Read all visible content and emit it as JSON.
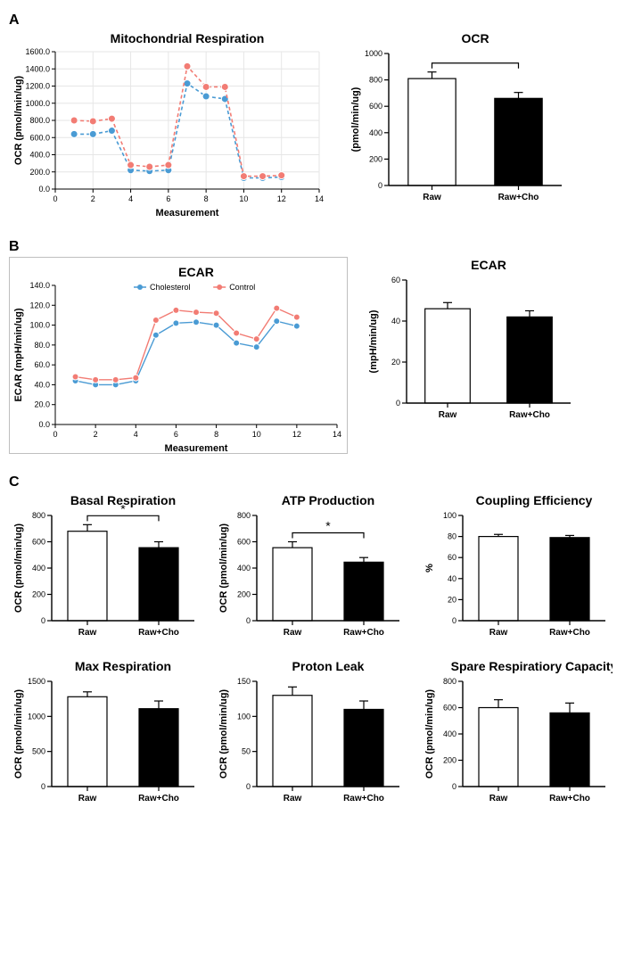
{
  "colors": {
    "blue": "#4a9bd4",
    "red": "#f27c74",
    "axis": "#000000",
    "grid": "#e6e6e6",
    "bg": "#ffffff",
    "black": "#000000",
    "white": "#ffffff",
    "gray_border": "#bfbfbf"
  },
  "fonts": {
    "title": 14,
    "axis_label": 11,
    "tick": 9,
    "legend": 9,
    "panel_label": 16
  },
  "panelA": {
    "line": {
      "title": "Mitochondrial Respiration",
      "xlabel": "Measurement",
      "ylabel": "OCR (pmol/min/ug)",
      "xlim": [
        0,
        14
      ],
      "ylim": [
        0,
        1600
      ],
      "ytick_step": 200,
      "xtick_step": 2,
      "grid_on": true,
      "bordered": false,
      "marker_radius": 4,
      "line_width": 1.6,
      "line_dash": "4 3",
      "series": [
        {
          "name": "blue",
          "color": "#4a9bd4",
          "x": [
            1,
            2,
            3,
            4,
            5,
            6,
            7,
            8,
            9,
            10,
            11,
            12
          ],
          "y": [
            640,
            640,
            680,
            220,
            210,
            220,
            1230,
            1080,
            1050,
            130,
            130,
            140
          ]
        },
        {
          "name": "red",
          "color": "#f27c74",
          "x": [
            1,
            2,
            3,
            4,
            5,
            6,
            7,
            8,
            9,
            10,
            11,
            12
          ],
          "y": [
            800,
            790,
            820,
            280,
            260,
            280,
            1430,
            1190,
            1190,
            150,
            150,
            160
          ]
        }
      ]
    },
    "bar": {
      "title": "OCR",
      "ylabel": "(pmol/min/ug)",
      "ylim": [
        0,
        1000
      ],
      "ytick_step": 200,
      "bar_width": 0.55,
      "categories": [
        "Raw",
        "Raw+Cho"
      ],
      "values": [
        810,
        660
      ],
      "errors": [
        50,
        45
      ],
      "fills": [
        "#ffffff",
        "#000000"
      ],
      "bracket": {
        "from": 0,
        "to": 1,
        "label": ""
      }
    }
  },
  "panelB": {
    "line": {
      "title": "ECAR",
      "xlabel": "Measurement",
      "ylabel": "ECAR (mpH/min/ug)",
      "xlim": [
        0,
        14
      ],
      "ylim": [
        0,
        140
      ],
      "ytick_step": 20,
      "xtick_step": 2,
      "grid_on": false,
      "bordered": true,
      "marker_radius": 3.5,
      "line_width": 1.4,
      "line_dash": null,
      "legend": [
        {
          "label": "Cholesterol",
          "color": "#4a9bd4"
        },
        {
          "label": "Control",
          "color": "#f27c74"
        }
      ],
      "series": [
        {
          "name": "blue",
          "color": "#4a9bd4",
          "x": [
            1,
            2,
            3,
            4,
            5,
            6,
            7,
            8,
            9,
            10,
            11,
            12
          ],
          "y": [
            44,
            40,
            40,
            44,
            90,
            102,
            103,
            100,
            82,
            78,
            104,
            99
          ]
        },
        {
          "name": "red",
          "color": "#f27c74",
          "x": [
            1,
            2,
            3,
            4,
            5,
            6,
            7,
            8,
            9,
            10,
            11,
            12
          ],
          "y": [
            48,
            45,
            45,
            47,
            105,
            115,
            113,
            112,
            92,
            86,
            117,
            108
          ]
        }
      ]
    },
    "bar": {
      "title": "ECAR",
      "ylabel": "(mpH/min/ug)",
      "ylim": [
        0,
        60
      ],
      "ytick_step": 20,
      "bar_width": 0.55,
      "categories": [
        "Raw",
        "Raw+Cho"
      ],
      "values": [
        46,
        42
      ],
      "errors": [
        3,
        3
      ],
      "fills": [
        "#ffffff",
        "#000000"
      ]
    }
  },
  "panelC": {
    "charts": [
      {
        "title": "Basal Respiration",
        "ylabel": "OCR (pmol/min/ug)",
        "ylim": [
          0,
          800
        ],
        "ytick_step": 200,
        "categories": [
          "Raw",
          "Raw+Cho"
        ],
        "values": [
          680,
          555
        ],
        "errors": [
          50,
          45
        ],
        "fills": [
          "#ffffff",
          "#000000"
        ],
        "bracket": {
          "from": 0,
          "to": 1,
          "label": "*"
        }
      },
      {
        "title": "ATP Production",
        "ylabel": "OCR (pmol/min/ug)",
        "ylim": [
          0,
          800
        ],
        "ytick_step": 200,
        "categories": [
          "Raw",
          "Raw+Cho"
        ],
        "values": [
          555,
          445
        ],
        "errors": [
          45,
          35
        ],
        "fills": [
          "#ffffff",
          "#000000"
        ],
        "bracket": {
          "from": 0,
          "to": 1,
          "label": "*"
        }
      },
      {
        "title": "Coupling Efficiency",
        "ylabel": "%",
        "ylim": [
          0,
          100
        ],
        "ytick_step": 20,
        "categories": [
          "Raw",
          "Raw+Cho"
        ],
        "values": [
          80,
          79
        ],
        "errors": [
          2,
          2
        ],
        "fills": [
          "#ffffff",
          "#000000"
        ]
      },
      {
        "title": "Max Respiration",
        "ylabel": "OCR (pmol/min/ug)",
        "ylim": [
          0,
          1500
        ],
        "ytick_step": 500,
        "categories": [
          "Raw",
          "Raw+Cho"
        ],
        "values": [
          1280,
          1110
        ],
        "errors": [
          70,
          110
        ],
        "fills": [
          "#ffffff",
          "#000000"
        ]
      },
      {
        "title": "Proton Leak",
        "ylabel": "OCR (pmol/min/ug)",
        "ylim": [
          0,
          150
        ],
        "ytick_step": 50,
        "categories": [
          "Raw",
          "Raw+Cho"
        ],
        "values": [
          130,
          110
        ],
        "errors": [
          12,
          12
        ],
        "fills": [
          "#ffffff",
          "#000000"
        ]
      },
      {
        "title": "Spare Respiratiory Capacity",
        "ylabel": "OCR (pmol/min/ug)",
        "ylim": [
          0,
          800
        ],
        "ytick_step": 200,
        "categories": [
          "Raw",
          "Raw+Cho"
        ],
        "values": [
          600,
          560
        ],
        "errors": [
          60,
          75
        ],
        "fills": [
          "#ffffff",
          "#000000"
        ]
      }
    ],
    "bar_width": 0.55
  }
}
